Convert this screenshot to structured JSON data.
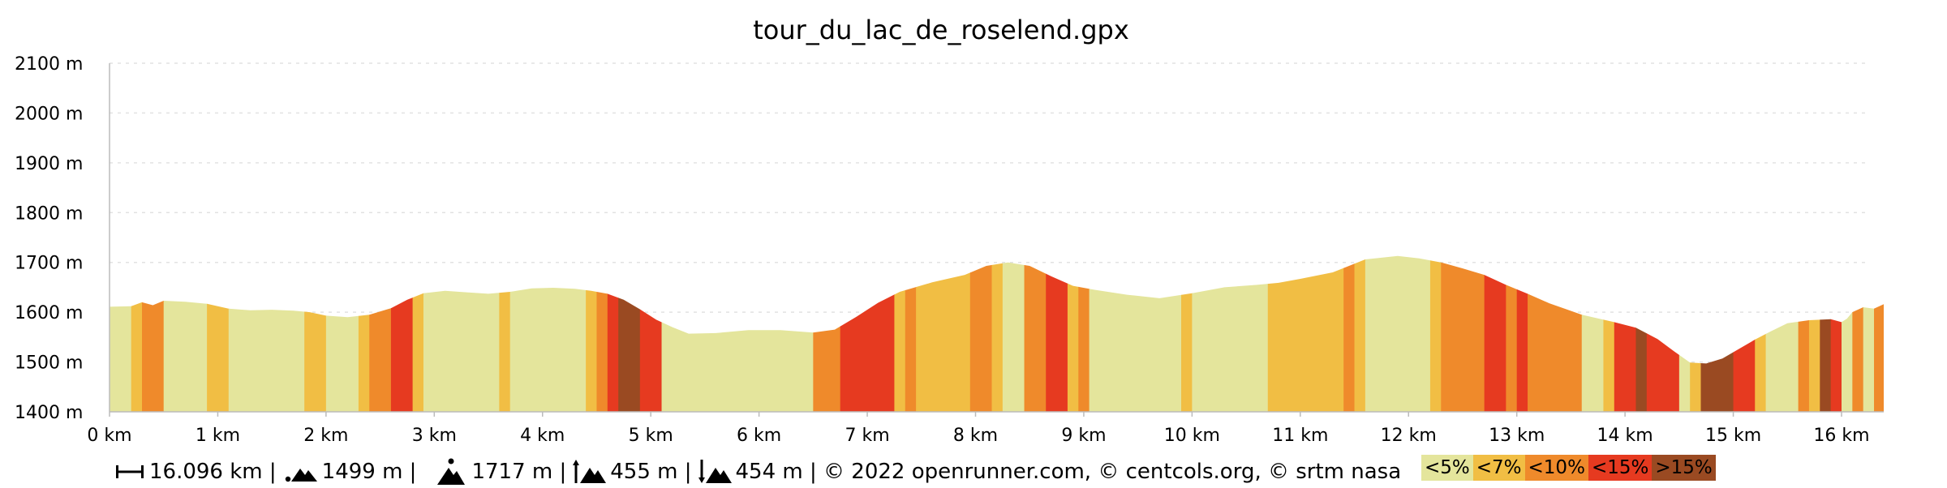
{
  "chart_data": {
    "type": "area",
    "title": "tour_du_lac_de_roselend.gpx",
    "xlim": [
      0,
      16.1
    ],
    "ylim": [
      1400,
      2100
    ],
    "grid": true,
    "x_ticks": [
      {
        "value": 0,
        "label": "0 km"
      },
      {
        "value": 1,
        "label": "1 km"
      },
      {
        "value": 2,
        "label": "2 km"
      },
      {
        "value": 3,
        "label": "3 km"
      },
      {
        "value": 4,
        "label": "4 km"
      },
      {
        "value": 5,
        "label": "5 km"
      },
      {
        "value": 6,
        "label": "6 km"
      },
      {
        "value": 7,
        "label": "7 km"
      },
      {
        "value": 8,
        "label": "8 km"
      },
      {
        "value": 9,
        "label": "9 km"
      },
      {
        "value": 10,
        "label": "10 km"
      },
      {
        "value": 11,
        "label": "11 km"
      },
      {
        "value": 12,
        "label": "12 km"
      },
      {
        "value": 13,
        "label": "13 km"
      },
      {
        "value": 14,
        "label": "14 km"
      },
      {
        "value": 15,
        "label": "15 km"
      },
      {
        "value": 16,
        "label": "16 km"
      }
    ],
    "y_ticks": [
      {
        "value": 1400,
        "label": "1400 m"
      },
      {
        "value": 1500,
        "label": "1500 m"
      },
      {
        "value": 1600,
        "label": "1600 m"
      },
      {
        "value": 1700,
        "label": "1700 m"
      },
      {
        "value": 1800,
        "label": "1800 m"
      },
      {
        "value": 1900,
        "label": "1900 m"
      },
      {
        "value": 2000,
        "label": "2000 m"
      },
      {
        "value": 2100,
        "label": "2100 m"
      }
    ],
    "profile": [
      [
        0.0,
        1611
      ],
      [
        0.2,
        1612
      ],
      [
        0.3,
        1620
      ],
      [
        0.4,
        1614
      ],
      [
        0.5,
        1623
      ],
      [
        0.7,
        1621
      ],
      [
        0.9,
        1617
      ],
      [
        1.1,
        1607
      ],
      [
        1.3,
        1604
      ],
      [
        1.5,
        1605
      ],
      [
        1.7,
        1603
      ],
      [
        1.85,
        1600
      ],
      [
        2.0,
        1593
      ],
      [
        2.2,
        1590
      ],
      [
        2.4,
        1595
      ],
      [
        2.6,
        1608
      ],
      [
        2.75,
        1625
      ],
      [
        2.9,
        1638
      ],
      [
        3.1,
        1643
      ],
      [
        3.3,
        1640
      ],
      [
        3.5,
        1637
      ],
      [
        3.7,
        1641
      ],
      [
        3.9,
        1648
      ],
      [
        4.1,
        1649
      ],
      [
        4.3,
        1647
      ],
      [
        4.45,
        1643
      ],
      [
        4.6,
        1637
      ],
      [
        4.75,
        1625
      ],
      [
        4.9,
        1606
      ],
      [
        5.05,
        1585
      ],
      [
        5.2,
        1570
      ],
      [
        5.35,
        1557
      ],
      [
        5.6,
        1558
      ],
      [
        5.9,
        1564
      ],
      [
        6.2,
        1564
      ],
      [
        6.5,
        1559
      ],
      [
        6.7,
        1565
      ],
      [
        6.9,
        1591
      ],
      [
        7.1,
        1619
      ],
      [
        7.3,
        1641
      ],
      [
        7.6,
        1660
      ],
      [
        7.9,
        1675
      ],
      [
        8.1,
        1693
      ],
      [
        8.3,
        1700
      ],
      [
        8.5,
        1693
      ],
      [
        8.7,
        1672
      ],
      [
        8.9,
        1653
      ],
      [
        9.1,
        1645
      ],
      [
        9.4,
        1635
      ],
      [
        9.7,
        1628
      ],
      [
        10.0,
        1638
      ],
      [
        10.3,
        1650
      ],
      [
        10.6,
        1655
      ],
      [
        10.8,
        1659
      ],
      [
        11.0,
        1667
      ],
      [
        11.3,
        1680
      ],
      [
        11.6,
        1706
      ],
      [
        11.9,
        1713
      ],
      [
        12.1,
        1708
      ],
      [
        12.3,
        1700
      ],
      [
        12.5,
        1688
      ],
      [
        12.7,
        1675
      ],
      [
        12.9,
        1655
      ],
      [
        13.1,
        1637
      ],
      [
        13.3,
        1618
      ],
      [
        13.6,
        1595
      ],
      [
        13.9,
        1580
      ],
      [
        14.1,
        1569
      ],
      [
        14.3,
        1546
      ],
      [
        14.45,
        1522
      ],
      [
        14.6,
        1499
      ],
      [
        14.75,
        1497
      ],
      [
        14.9,
        1507
      ],
      [
        15.05,
        1526
      ],
      [
        15.2,
        1545
      ],
      [
        15.35,
        1562
      ],
      [
        15.5,
        1578
      ],
      [
        15.7,
        1584
      ],
      [
        15.9,
        1586
      ],
      [
        16.0,
        1580
      ],
      [
        16.05,
        1587
      ],
      [
        16.1,
        1600
      ],
      [
        16.2,
        1610
      ],
      [
        16.3,
        1607
      ],
      [
        16.39,
        1616
      ]
    ],
    "slope_bands": [
      [
        0.0,
        0.2,
        0
      ],
      [
        0.2,
        0.3,
        1
      ],
      [
        0.3,
        0.5,
        2
      ],
      [
        0.5,
        0.9,
        0
      ],
      [
        0.9,
        1.1,
        1
      ],
      [
        1.1,
        1.8,
        0
      ],
      [
        1.8,
        2.0,
        1
      ],
      [
        2.0,
        2.3,
        0
      ],
      [
        2.3,
        2.4,
        1
      ],
      [
        2.4,
        2.6,
        2
      ],
      [
        2.6,
        2.8,
        3
      ],
      [
        2.8,
        2.9,
        1
      ],
      [
        2.9,
        3.6,
        0
      ],
      [
        3.6,
        3.7,
        1
      ],
      [
        3.7,
        4.4,
        0
      ],
      [
        4.4,
        4.5,
        1
      ],
      [
        4.5,
        4.6,
        2
      ],
      [
        4.6,
        4.7,
        3
      ],
      [
        4.7,
        4.9,
        4
      ],
      [
        4.9,
        5.1,
        3
      ],
      [
        5.1,
        6.5,
        0
      ],
      [
        6.5,
        6.75,
        2
      ],
      [
        6.75,
        7.25,
        3
      ],
      [
        7.25,
        7.35,
        1
      ],
      [
        7.35,
        7.45,
        2
      ],
      [
        7.45,
        7.95,
        1
      ],
      [
        7.95,
        8.15,
        2
      ],
      [
        8.15,
        8.25,
        1
      ],
      [
        8.25,
        8.45,
        0
      ],
      [
        8.45,
        8.65,
        2
      ],
      [
        8.65,
        8.85,
        3
      ],
      [
        8.85,
        8.95,
        1
      ],
      [
        8.95,
        9.05,
        2
      ],
      [
        9.05,
        9.9,
        0
      ],
      [
        9.9,
        10.0,
        1
      ],
      [
        10.0,
        10.7,
        0
      ],
      [
        10.7,
        11.4,
        1
      ],
      [
        11.4,
        11.5,
        2
      ],
      [
        11.5,
        11.6,
        1
      ],
      [
        11.6,
        12.2,
        0
      ],
      [
        12.2,
        12.3,
        1
      ],
      [
        12.3,
        12.7,
        2
      ],
      [
        12.7,
        12.9,
        3
      ],
      [
        12.9,
        13.0,
        2
      ],
      [
        13.0,
        13.1,
        3
      ],
      [
        13.1,
        13.6,
        2
      ],
      [
        13.6,
        13.8,
        0
      ],
      [
        13.8,
        13.9,
        1
      ],
      [
        13.9,
        14.1,
        3
      ],
      [
        14.1,
        14.2,
        4
      ],
      [
        14.2,
        14.5,
        3
      ],
      [
        14.5,
        14.6,
        0
      ],
      [
        14.6,
        14.7,
        1
      ],
      [
        14.7,
        15.0,
        4
      ],
      [
        15.0,
        15.2,
        3
      ],
      [
        15.2,
        15.3,
        1
      ],
      [
        15.3,
        15.6,
        0
      ],
      [
        15.6,
        15.7,
        2
      ],
      [
        15.7,
        15.8,
        1
      ],
      [
        15.8,
        15.9,
        4
      ],
      [
        15.9,
        16.0,
        3
      ],
      [
        16.0,
        16.1,
        0
      ],
      [
        16.1,
        16.2,
        2
      ],
      [
        16.2,
        16.3,
        0
      ],
      [
        16.3,
        16.39,
        2
      ]
    ]
  },
  "legend": [
    {
      "label": "<5%",
      "color": "#e4e59c"
    },
    {
      "label": "<7%",
      "color": "#f1be44"
    },
    {
      "label": "<10%",
      "color": "#ef8a2b"
    },
    {
      "label": "<15%",
      "color": "#e63a20"
    },
    {
      "label": ">15%",
      "color": "#9a4a22"
    }
  ],
  "footer": {
    "distance": "16.096 km |",
    "min_alt": "1499 m |",
    "max_alt": "1717 m |",
    "ascent": "455 m |",
    "descent": "454 m | © 2022 openrunner.com, © centcols.org, © srtm nasa"
  }
}
